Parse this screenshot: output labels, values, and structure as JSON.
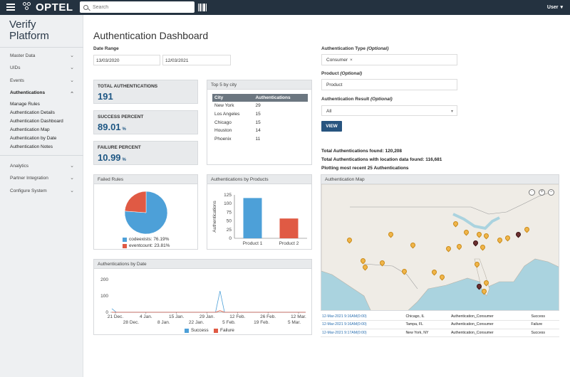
{
  "header": {
    "logo_text": "OPTEL",
    "search_placeholder": "Search",
    "user_label": "User"
  },
  "sidebar": {
    "brand_line1": "Verify",
    "brand_line2": "Platform",
    "items": [
      {
        "label": "Master Data"
      },
      {
        "label": "UIDs"
      },
      {
        "label": "Events"
      },
      {
        "label": "Authentications"
      },
      {
        "label": "Analytics"
      },
      {
        "label": "Partner Integration"
      },
      {
        "label": "Configure System"
      }
    ],
    "sub_items": [
      {
        "label": "Manage Rules"
      },
      {
        "label": "Authentication Details"
      },
      {
        "label": "Authentication Dashboard"
      },
      {
        "label": "Authentication Map"
      },
      {
        "label": "Authentication by Date"
      },
      {
        "label": "Authentication Notes"
      }
    ]
  },
  "page": {
    "title": "Authentication Dashboard"
  },
  "filters": {
    "date_range_label": "Date Range",
    "date_from": "13/03/2020",
    "date_to": "12/03/2021",
    "auth_type_label": "Authentication Type",
    "auth_type_value": "Consumer",
    "product_label": "Product",
    "product_placeholder": "Product",
    "result_label": "Authentication Result",
    "result_value": "All",
    "optional_text": "(Optional)",
    "view_button": "VIEW"
  },
  "stats": [
    {
      "title": "TOTAL AUTHENTICATIONS",
      "value": "191",
      "unit": ""
    },
    {
      "title": "SUCCESS PERCENT",
      "value": "89.01",
      "unit": "%"
    },
    {
      "title": "FAILURE PERCENT",
      "value": "10.99",
      "unit": "%"
    }
  ],
  "top5": {
    "title": "Top 5 by city",
    "columns": [
      "City",
      "Authentications"
    ],
    "rows": [
      [
        "New York",
        "29"
      ],
      [
        "Los Angeles",
        "15"
      ],
      [
        "Chicago",
        "15"
      ],
      [
        "Houston",
        "14"
      ],
      [
        "Phoenix",
        "11"
      ]
    ]
  },
  "totals": {
    "line1": "Total Authentications found: 120,208",
    "line2": "Total Authentications with location data found: 116,681",
    "line3": "Plotting most recent 25 Authentications"
  },
  "failed_rules": {
    "title": "Failed Rules",
    "colors": [
      "#4da0d8",
      "#e05a44"
    ]
  },
  "by_products": {
    "title": "Authentications by Products"
  },
  "by_date": {
    "title": "Authentications by Date",
    "colors": [
      "#4da0d8",
      "#e05a44"
    ]
  },
  "chart_data": [
    {
      "type": "pie",
      "title": "Failed Rules",
      "labels": [
        "codeexists: 76.19%",
        "eventcount: 23.81%"
      ],
      "values": [
        76.19,
        23.81
      ]
    },
    {
      "type": "bar",
      "title": "Authentications by Products",
      "categories": [
        "Product 1",
        "Product 2"
      ],
      "values": [
        116,
        57
      ],
      "ylabel": "Authentications",
      "ylim": [
        0,
        125
      ],
      "yticks": [
        "0",
        "25",
        "50",
        "75",
        "100",
        "125"
      ]
    },
    {
      "type": "line",
      "title": "Authentications by Date",
      "x_ticks_top": [
        "21 Dec.",
        "4 Jan.",
        "15 Jan.",
        "29 Jan.",
        "12 Feb.",
        "26 Feb.",
        "12 Mar."
      ],
      "x_ticks_bottom": [
        "28 Dec.",
        "8 Jan.",
        "22 Jan.",
        "5 Feb.",
        "19 Feb.",
        "5 Mar."
      ],
      "yticks": [
        "0",
        "100",
        "200"
      ],
      "ylim": [
        0,
        200
      ],
      "series": [
        {
          "name": "Success",
          "values": [
            22,
            0,
            0,
            0,
            0,
            0,
            0,
            0,
            0,
            0,
            0,
            0,
            0,
            0,
            0,
            0,
            0,
            0,
            0,
            0,
            0,
            0,
            0,
            0,
            130,
            0,
            0,
            0,
            0,
            0,
            0,
            0,
            0,
            0,
            0,
            0,
            0,
            0,
            0,
            0,
            0,
            0,
            0,
            0
          ]
        },
        {
          "name": "Failure",
          "values": [
            0,
            0,
            0,
            0,
            0,
            0,
            0,
            0,
            0,
            0,
            0,
            0,
            0,
            0,
            0,
            0,
            0,
            0,
            0,
            0,
            0,
            0,
            0,
            0,
            10,
            0,
            0,
            0,
            0,
            0,
            0,
            0,
            0,
            0,
            0,
            0,
            0,
            0,
            0,
            0,
            0,
            0,
            0,
            0
          ]
        }
      ]
    }
  ],
  "map": {
    "title": "Authentication Map",
    "zoom_in": "+",
    "zoom_out": "−"
  },
  "auth_list": [
    [
      "12-Mar-2021 9:16AM(0:00)",
      "Chicago, IL",
      "Authentication_Consumer",
      "Success"
    ],
    [
      "12-Mar-2021 9:16AM(0:00)",
      "Tampa, FL",
      "Authentication_Consumer",
      "Failure"
    ],
    [
      "12-Mar-2021 9:17AM(0:00)",
      "New York, NY",
      "Authentication_Consumer",
      "Success"
    ]
  ]
}
